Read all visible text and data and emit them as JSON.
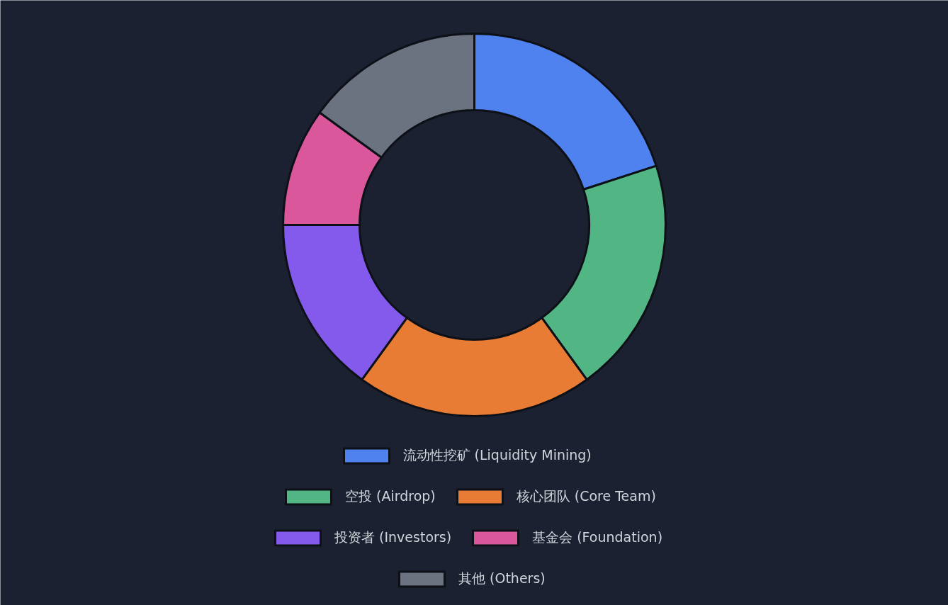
{
  "chart_data": {
    "type": "donut",
    "categories": [
      "流动性挖矿 (Liquidity Mining)",
      "空投 (Airdrop)",
      "核心团队 (Core Team)",
      "投资者 (Investors)",
      "基金会 (Foundation)",
      "其他 (Others)"
    ],
    "values": [
      20,
      20,
      20,
      15,
      10,
      15
    ],
    "colors": [
      "#4f82ee",
      "#52b584",
      "#e97c34",
      "#845aed",
      "#d9579a",
      "#6b7280"
    ],
    "legend": "bottom"
  }
}
